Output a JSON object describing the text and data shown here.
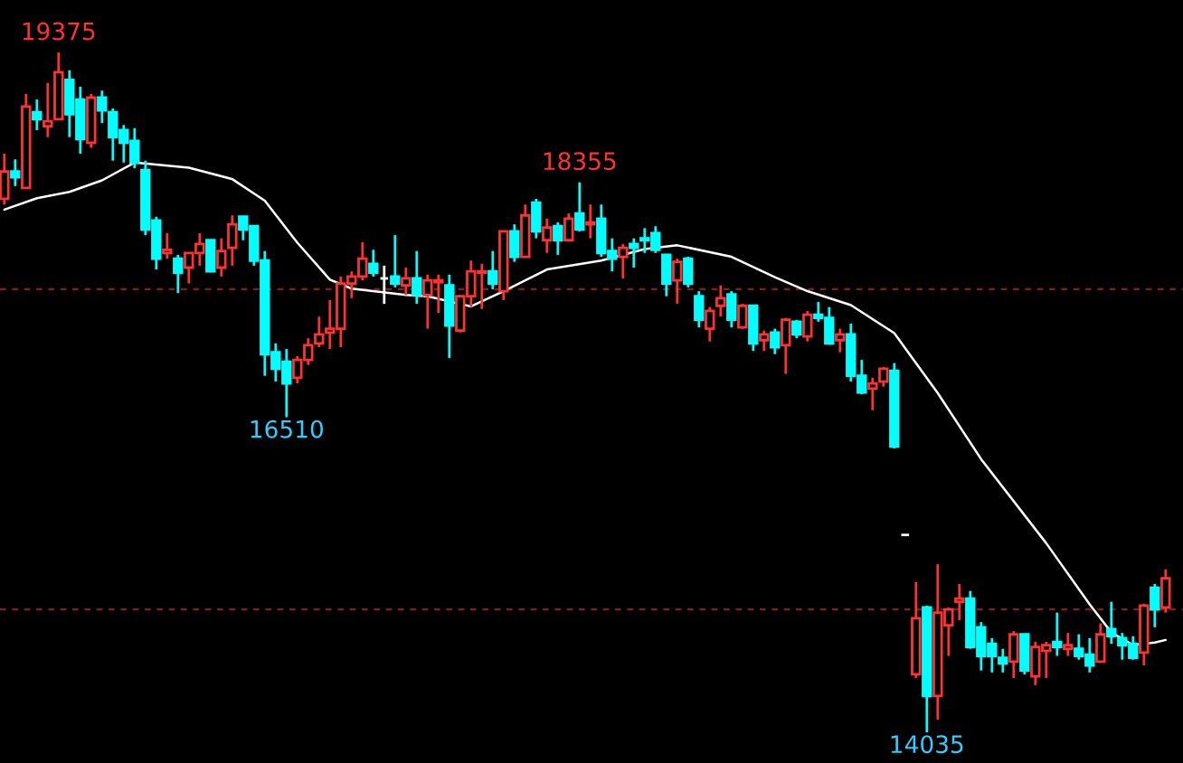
{
  "chart_data": {
    "type": "candlestick",
    "categories": [
      null,
      null,
      null,
      null,
      null,
      null,
      null,
      null,
      null,
      null,
      null,
      null,
      null,
      null,
      null,
      null,
      null,
      null,
      null,
      null,
      null,
      null,
      null,
      null,
      null,
      null,
      null,
      null,
      null,
      null,
      null,
      null,
      null,
      null,
      null,
      null,
      null,
      null,
      null,
      null,
      null,
      null,
      null,
      null,
      null,
      null,
      null,
      null,
      null,
      null,
      null,
      null,
      null,
      null,
      null,
      null,
      null,
      null,
      null,
      null,
      null,
      null,
      null,
      null,
      null,
      null,
      null,
      null,
      null,
      null,
      null,
      null,
      null,
      null,
      null,
      null,
      null,
      null,
      null,
      null,
      null,
      null,
      null,
      null,
      null,
      null,
      null,
      null,
      null,
      null,
      null,
      null,
      null,
      null,
      null,
      null,
      null,
      null,
      null,
      null,
      null,
      null,
      null,
      null,
      null,
      null,
      null,
      null
    ],
    "ohlc": [
      [
        18225,
        18580,
        18180,
        18440
      ],
      [
        18440,
        18535,
        18325,
        18395
      ],
      [
        18310,
        19050,
        18310,
        18950
      ],
      [
        18905,
        19005,
        18765,
        18850
      ],
      [
        18795,
        19135,
        18710,
        18835
      ],
      [
        18850,
        19375,
        18850,
        19220
      ],
      [
        19160,
        19235,
        18710,
        18890
      ],
      [
        19005,
        19105,
        18580,
        18695
      ],
      [
        18665,
        19050,
        18625,
        19020
      ],
      [
        19020,
        19075,
        18820,
        18920
      ],
      [
        18905,
        18935,
        18525,
        18710
      ],
      [
        18765,
        18805,
        18510,
        18665
      ],
      [
        18680,
        18780,
        18465,
        18510
      ],
      [
        18450,
        18525,
        17940,
        17985
      ],
      [
        18055,
        18085,
        17670,
        17755
      ],
      [
        17800,
        17955,
        17755,
        17825
      ],
      [
        17755,
        17785,
        17485,
        17645
      ],
      [
        17685,
        17800,
        17560,
        17800
      ],
      [
        17800,
        17955,
        17700,
        17870
      ],
      [
        17900,
        17900,
        17655,
        17655
      ],
      [
        17685,
        17915,
        17615,
        17815
      ],
      [
        17840,
        18095,
        17700,
        18025
      ],
      [
        18085,
        18085,
        17900,
        17985
      ],
      [
        18010,
        18010,
        17700,
        17740
      ],
      [
        17740,
        17815,
        16835,
        17005
      ],
      [
        17020,
        17090,
        16790,
        16890
      ],
      [
        16945,
        17045,
        16510,
        16775
      ],
      [
        16820,
        16990,
        16775,
        16960
      ],
      [
        16960,
        17130,
        16920,
        17075
      ],
      [
        17090,
        17300,
        17060,
        17160
      ],
      [
        17175,
        17430,
        17045,
        17205
      ],
      [
        17205,
        17615,
        17060,
        17560
      ],
      [
        17560,
        17655,
        17445,
        17615
      ],
      [
        17615,
        17885,
        17585,
        17755
      ],
      [
        17715,
        17825,
        17615,
        17645
      ],
      [
        17600,
        17700,
        17400,
        17600
      ],
      [
        17615,
        17940,
        17530,
        17560
      ],
      [
        17545,
        17685,
        17470,
        17600
      ],
      [
        17600,
        17815,
        17400,
        17470
      ],
      [
        17470,
        17630,
        17205,
        17585
      ],
      [
        17570,
        17630,
        17330,
        17585
      ],
      [
        17545,
        17630,
        16975,
        17230
      ],
      [
        17190,
        17470,
        17175,
        17460
      ],
      [
        17460,
        17740,
        17375,
        17655
      ],
      [
        17645,
        17715,
        17360,
        17655
      ],
      [
        17655,
        17815,
        17515,
        17560
      ],
      [
        17500,
        17970,
        17430,
        17970
      ],
      [
        17970,
        18025,
        17730,
        17770
      ],
      [
        17770,
        18180,
        17770,
        18095
      ],
      [
        18195,
        18225,
        17915,
        17970
      ],
      [
        17900,
        18070,
        17800,
        18000
      ],
      [
        18010,
        18040,
        17785,
        17900
      ],
      [
        17900,
        18110,
        17900,
        18070
      ],
      [
        18110,
        18355,
        17970,
        17985
      ],
      [
        18025,
        18180,
        17915,
        18040
      ],
      [
        18070,
        18180,
        17770,
        17800
      ],
      [
        17815,
        17915,
        17655,
        17755
      ],
      [
        17770,
        17870,
        17600,
        17840
      ],
      [
        17870,
        17915,
        17685,
        17840
      ],
      [
        17915,
        17995,
        17800,
        17900
      ],
      [
        17955,
        18010,
        17800,
        17825
      ],
      [
        17785,
        17785,
        17460,
        17560
      ],
      [
        17585,
        17755,
        17400,
        17730
      ],
      [
        17755,
        17770,
        17530,
        17560
      ],
      [
        17460,
        17500,
        17215,
        17275
      ],
      [
        17205,
        17375,
        17105,
        17345
      ],
      [
        17385,
        17545,
        17300,
        17445
      ],
      [
        17475,
        17500,
        17215,
        17275
      ],
      [
        17215,
        17400,
        17205,
        17385
      ],
      [
        17385,
        17385,
        17030,
        17090
      ],
      [
        17115,
        17190,
        17030,
        17160
      ],
      [
        17175,
        17205,
        17005,
        17060
      ],
      [
        17075,
        17290,
        16850,
        17275
      ],
      [
        17260,
        17275,
        17130,
        17160
      ],
      [
        17145,
        17345,
        17105,
        17315
      ],
      [
        17315,
        17415,
        17260,
        17290
      ],
      [
        17290,
        17375,
        17090,
        17090
      ],
      [
        17115,
        17205,
        17020,
        17160
      ],
      [
        17160,
        17245,
        16790,
        16835
      ],
      [
        16835,
        16960,
        16690,
        16705
      ],
      [
        16735,
        16820,
        16565,
        16775
      ],
      [
        16790,
        16905,
        16750,
        16890
      ],
      [
        16875,
        16935,
        16265,
        16280
      ],
      [
        15585,
        15585,
        15585,
        15585
      ],
      [
        14490,
        15215,
        14460,
        14930
      ],
      [
        15015,
        15030,
        14035,
        14320
      ],
      [
        14320,
        15355,
        14135,
        14975
      ],
      [
        14875,
        15015,
        14635,
        15000
      ],
      [
        15060,
        15200,
        14915,
        15085
      ],
      [
        15085,
        15145,
        14690,
        14705
      ],
      [
        14860,
        14900,
        14520,
        14635
      ],
      [
        14730,
        14775,
        14505,
        14635
      ],
      [
        14620,
        14690,
        14505,
        14575
      ],
      [
        14590,
        14830,
        14460,
        14805
      ],
      [
        14805,
        14805,
        14490,
        14520
      ],
      [
        14475,
        14745,
        14405,
        14705
      ],
      [
        14675,
        14745,
        14460,
        14720
      ],
      [
        14745,
        14975,
        14635,
        14705
      ],
      [
        14690,
        14815,
        14635,
        14720
      ],
      [
        14690,
        14805,
        14605,
        14635
      ],
      [
        14645,
        14775,
        14505,
        14560
      ],
      [
        14590,
        14890,
        14590,
        14805
      ],
      [
        14845,
        15060,
        14730,
        14790
      ],
      [
        14775,
        14815,
        14605,
        14720
      ],
      [
        14730,
        14790,
        14605,
        14620
      ],
      [
        14660,
        15045,
        14560,
        15030
      ],
      [
        15170,
        15200,
        14860,
        15000
      ],
      [
        15015,
        15315,
        14975,
        15245
      ]
    ],
    "colors": [
      "#ff3232",
      "#00ffff",
      "#ff3232",
      "#00ffff",
      "#ff3232",
      "#ff3232",
      "#00ffff",
      "#00ffff",
      "#ff3232",
      "#00ffff",
      "#00ffff",
      "#00ffff",
      "#00ffff",
      "#00ffff",
      "#00ffff",
      "#ff3232",
      "#00ffff",
      "#ff3232",
      "#ff3232",
      "#00ffff",
      "#ff3232",
      "#ff3232",
      "#00ffff",
      "#00ffff",
      "#00ffff",
      "#00ffff",
      "#00ffff",
      "#ff3232",
      "#ff3232",
      "#ff3232",
      "#ff3232",
      "#ff3232",
      "#ff3232",
      "#ff3232",
      "#00ffff",
      "#ffffff",
      "#00ffff",
      "#ff3232",
      "#00ffff",
      "#ff3232",
      "#ff3232",
      "#00ffff",
      "#ff3232",
      "#ff3232",
      "#ff3232",
      "#00ffff",
      "#ff3232",
      "#00ffff",
      "#ff3232",
      "#00ffff",
      "#ff3232",
      "#00ffff",
      "#ff3232",
      "#00ffff",
      "#ff3232",
      "#00ffff",
      "#00ffff",
      "#ff3232",
      "#00ffff",
      "#00ffff",
      "#00ffff",
      "#00ffff",
      "#ff3232",
      "#00ffff",
      "#00ffff",
      "#ff3232",
      "#ff3232",
      "#00ffff",
      "#ff3232",
      "#00ffff",
      "#ff3232",
      "#00ffff",
      "#ff3232",
      "#00ffff",
      "#ff3232",
      "#00ffff",
      "#00ffff",
      "#ff3232",
      "#00ffff",
      "#00ffff",
      "#ff3232",
      "#ff3232",
      "#00ffff",
      "#ffffff",
      "#ff3232",
      "#00ffff",
      "#ff3232",
      "#ff3232",
      "#ff3232",
      "#00ffff",
      "#00ffff",
      "#00ffff",
      "#00ffff",
      "#ff3232",
      "#00ffff",
      "#ff3232",
      "#ff3232",
      "#00ffff",
      "#ff3232",
      "#00ffff",
      "#00ffff",
      "#ff3232",
      "#00ffff",
      "#00ffff",
      "#00ffff",
      "#ff3232",
      "#00ffff",
      "#ff3232"
    ],
    "series": [
      {
        "type": "line",
        "color": "#ffffff",
        "values": [
          18140,
          null,
          null,
          18230,
          null,
          null,
          18280,
          null,
          null,
          18370,
          null,
          null,
          18510,
          null,
          null,
          null,
          null,
          18470,
          null,
          null,
          null,
          18380,
          null,
          null,
          18210,
          null,
          null,
          17880,
          null,
          null,
          17590,
          null,
          17520,
          null,
          null,
          null,
          null,
          17470,
          null,
          17460,
          null,
          null,
          null,
          17380,
          null,
          null,
          17500,
          null,
          null,
          null,
          17670,
          null,
          null,
          null,
          null,
          17740,
          null,
          null,
          null,
          17830,
          null,
          null,
          17860,
          null,
          null,
          null,
          null,
          17770,
          null,
          null,
          null,
          17610,
          null,
          null,
          17500,
          null,
          null,
          null,
          17390,
          null,
          null,
          null,
          17170,
          null,
          null,
          null,
          16700,
          null,
          null,
          null,
          16180,
          null,
          null,
          null,
          null,
          null,
          15520,
          null,
          null,
          null,
          15040,
          null,
          14820,
          null,
          14720,
          null,
          14740,
          14760
        ]
      }
    ],
    "ref_lines": [
      {
        "axis": "y",
        "value": 17515,
        "color": "#8b1a1a",
        "line_style": "dashed"
      },
      {
        "axis": "y",
        "value": 15000,
        "color": "#8b1a1a",
        "line_style": "dashed"
      }
    ],
    "annotations": [
      {
        "text": "19375",
        "y": 19375
      },
      {
        "text": "16510",
        "y": 16510
      },
      {
        "text": "18355",
        "y": 18355
      },
      {
        "text": "14035",
        "y": 14035
      }
    ]
  }
}
